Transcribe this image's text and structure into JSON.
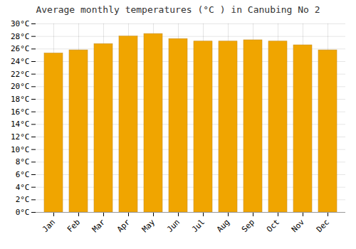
{
  "chart_data": {
    "type": "bar",
    "title": "Average monthly temperatures (°C ) in Canubing No 2",
    "categories": [
      "Jan",
      "Feb",
      "Mar",
      "Apr",
      "May",
      "Jun",
      "Jul",
      "Aug",
      "Sep",
      "Oct",
      "Nov",
      "Dec"
    ],
    "values": [
      25.3,
      25.8,
      26.8,
      28.0,
      28.4,
      27.6,
      27.2,
      27.2,
      27.4,
      27.2,
      26.6,
      25.8
    ],
    "color": "#F0A500",
    "ylim": [
      0,
      30
    ],
    "yticks": [
      {
        "value": 0,
        "label": "0°C"
      },
      {
        "value": 2,
        "label": "2°C"
      },
      {
        "value": 4,
        "label": "4°C"
      },
      {
        "value": 6,
        "label": "6°C"
      },
      {
        "value": 8,
        "label": "8°C"
      },
      {
        "value": 10,
        "label": "10°C"
      },
      {
        "value": 12,
        "label": "12°C"
      },
      {
        "value": 14,
        "label": "14°C"
      },
      {
        "value": 16,
        "label": "16°C"
      },
      {
        "value": 18,
        "label": "18°C"
      },
      {
        "value": 20,
        "label": "20°C"
      },
      {
        "value": 22,
        "label": "22°C"
      },
      {
        "value": 24,
        "label": "24°C"
      },
      {
        "value": 26,
        "label": "26°C"
      },
      {
        "value": 28,
        "label": "28°C"
      },
      {
        "value": 30,
        "label": "30°C"
      }
    ],
    "grid": true
  }
}
